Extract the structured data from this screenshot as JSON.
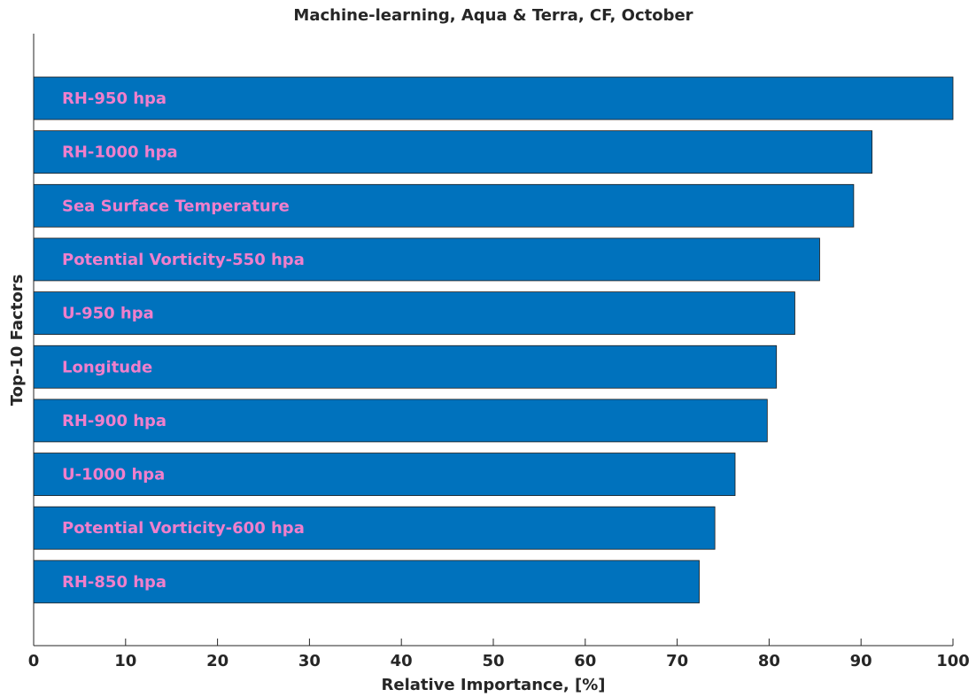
{
  "chart_data": {
    "type": "barh",
    "title": "Machine-learning, Aqua & Terra, CF, October",
    "xlabel": "Relative Importance, [%]",
    "ylabel": "Top-10 Factors",
    "categories": [
      "RH-950 hpa",
      "RH-1000 hpa",
      "Sea Surface Temperature",
      "Potential Vorticity-550 hpa",
      "U-950 hpa",
      "Longitude",
      "RH-900 hpa",
      "U-1000 hpa",
      "Potential Vorticity-600 hpa",
      "RH-850 hpa"
    ],
    "values": [
      100,
      91.2,
      89.2,
      85.5,
      82.8,
      80.8,
      79.8,
      76.3,
      74.1,
      72.4
    ],
    "color": "#0072bd",
    "label_color": "#f07fcc",
    "xlim": [
      0,
      100
    ],
    "xticks": [
      0,
      10,
      20,
      30,
      40,
      50,
      60,
      70,
      80,
      90,
      100
    ],
    "grid": false
  }
}
